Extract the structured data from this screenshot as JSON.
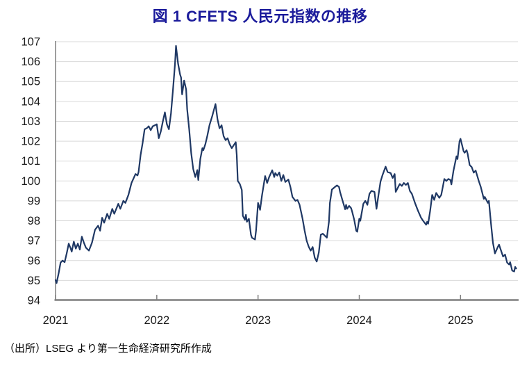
{
  "title": "図 1  CFETS 人民元指数の推移",
  "source_note": "（出所）LSEG より第一生命経済研究所作成",
  "colors": {
    "title_text": "#1b1b9b",
    "line": "#1f3864",
    "grid": "#d9d9d9",
    "axis": "#7f7f7f",
    "axis_text": "#1a1a1a"
  },
  "chart_data": {
    "type": "line",
    "title": "図 1  CFETS 人民元指数の推移",
    "xlabel": "",
    "ylabel": "",
    "grid": "horizontal",
    "legend": "none",
    "x_axis": {
      "range": [
        2021.0,
        2025.56
      ],
      "tick_positions": [
        2021,
        2022,
        2023,
        2024,
        2025
      ],
      "tick_labels": [
        "2021",
        "2022",
        "2023",
        "2024",
        "2025"
      ]
    },
    "y_axis": {
      "range": [
        94,
        107
      ],
      "tick_step": 1,
      "tick_labels": [
        "94",
        "95",
        "96",
        "97",
        "98",
        "99",
        "100",
        "101",
        "102",
        "103",
        "104",
        "105",
        "106",
        "107"
      ]
    },
    "series": [
      {
        "name": "CFETS人民元指数",
        "color": "#1f3864",
        "points": [
          [
            2021.0,
            95.02
          ],
          [
            2021.01,
            94.87
          ],
          [
            2021.03,
            95.35
          ],
          [
            2021.05,
            95.9
          ],
          [
            2021.07,
            96.0
          ],
          [
            2021.09,
            95.92
          ],
          [
            2021.11,
            96.35
          ],
          [
            2021.13,
            96.85
          ],
          [
            2021.15,
            96.6
          ],
          [
            2021.16,
            96.45
          ],
          [
            2021.18,
            96.95
          ],
          [
            2021.2,
            96.6
          ],
          [
            2021.22,
            96.85
          ],
          [
            2021.24,
            96.55
          ],
          [
            2021.26,
            97.2
          ],
          [
            2021.28,
            96.9
          ],
          [
            2021.3,
            96.65
          ],
          [
            2021.33,
            96.5
          ],
          [
            2021.36,
            96.9
          ],
          [
            2021.39,
            97.55
          ],
          [
            2021.42,
            97.75
          ],
          [
            2021.44,
            97.5
          ],
          [
            2021.46,
            98.15
          ],
          [
            2021.48,
            97.9
          ],
          [
            2021.51,
            98.35
          ],
          [
            2021.53,
            98.1
          ],
          [
            2021.56,
            98.6
          ],
          [
            2021.58,
            98.35
          ],
          [
            2021.62,
            98.85
          ],
          [
            2021.64,
            98.6
          ],
          [
            2021.67,
            99.0
          ],
          [
            2021.69,
            98.9
          ],
          [
            2021.72,
            99.3
          ],
          [
            2021.75,
            99.9
          ],
          [
            2021.79,
            100.35
          ],
          [
            2021.81,
            100.28
          ],
          [
            2021.82,
            100.45
          ],
          [
            2021.84,
            101.3
          ],
          [
            2021.86,
            101.9
          ],
          [
            2021.88,
            102.6
          ],
          [
            2021.9,
            102.65
          ],
          [
            2021.92,
            102.75
          ],
          [
            2021.94,
            102.55
          ],
          [
            2021.96,
            102.75
          ],
          [
            2021.98,
            102.8
          ],
          [
            2022.0,
            102.85
          ],
          [
            2022.02,
            102.15
          ],
          [
            2022.04,
            102.5
          ],
          [
            2022.06,
            103.0
          ],
          [
            2022.08,
            103.45
          ],
          [
            2022.1,
            102.85
          ],
          [
            2022.12,
            102.6
          ],
          [
            2022.14,
            103.4
          ],
          [
            2022.16,
            104.6
          ],
          [
            2022.18,
            105.9
          ],
          [
            2022.19,
            106.79
          ],
          [
            2022.21,
            105.9
          ],
          [
            2022.23,
            105.35
          ],
          [
            2022.24,
            105.2
          ],
          [
            2022.25,
            104.35
          ],
          [
            2022.27,
            105.05
          ],
          [
            2022.29,
            104.6
          ],
          [
            2022.3,
            103.6
          ],
          [
            2022.32,
            102.6
          ],
          [
            2022.34,
            101.4
          ],
          [
            2022.36,
            100.6
          ],
          [
            2022.38,
            100.2
          ],
          [
            2022.4,
            100.55
          ],
          [
            2022.41,
            100.05
          ],
          [
            2022.43,
            101.1
          ],
          [
            2022.45,
            101.65
          ],
          [
            2022.46,
            101.55
          ],
          [
            2022.48,
            101.85
          ],
          [
            2022.5,
            102.3
          ],
          [
            2022.52,
            102.8
          ],
          [
            2022.55,
            103.3
          ],
          [
            2022.58,
            103.87
          ],
          [
            2022.6,
            103.1
          ],
          [
            2022.62,
            102.65
          ],
          [
            2022.64,
            102.8
          ],
          [
            2022.66,
            102.25
          ],
          [
            2022.68,
            102.05
          ],
          [
            2022.7,
            102.15
          ],
          [
            2022.72,
            101.85
          ],
          [
            2022.74,
            101.65
          ],
          [
            2022.76,
            101.8
          ],
          [
            2022.78,
            101.95
          ],
          [
            2022.79,
            101.3
          ],
          [
            2022.8,
            100.0
          ],
          [
            2022.82,
            99.85
          ],
          [
            2022.84,
            99.55
          ],
          [
            2022.85,
            98.25
          ],
          [
            2022.87,
            98.05
          ],
          [
            2022.88,
            98.3
          ],
          [
            2022.89,
            97.95
          ],
          [
            2022.91,
            98.1
          ],
          [
            2022.93,
            97.3
          ],
          [
            2022.94,
            97.15
          ],
          [
            2022.97,
            97.06
          ],
          [
            2022.98,
            97.5
          ],
          [
            2023.0,
            98.9
          ],
          [
            2023.02,
            98.55
          ],
          [
            2023.04,
            99.3
          ],
          [
            2023.07,
            100.25
          ],
          [
            2023.09,
            99.9
          ],
          [
            2023.11,
            100.2
          ],
          [
            2023.14,
            100.54
          ],
          [
            2023.16,
            100.2
          ],
          [
            2023.17,
            100.4
          ],
          [
            2023.19,
            100.27
          ],
          [
            2023.21,
            100.43
          ],
          [
            2023.23,
            100.0
          ],
          [
            2023.25,
            100.3
          ],
          [
            2023.27,
            99.95
          ],
          [
            2023.3,
            100.07
          ],
          [
            2023.32,
            99.7
          ],
          [
            2023.34,
            99.2
          ],
          [
            2023.37,
            99.0
          ],
          [
            2023.39,
            99.05
          ],
          [
            2023.41,
            98.8
          ],
          [
            2023.44,
            98.1
          ],
          [
            2023.46,
            97.5
          ],
          [
            2023.48,
            97.0
          ],
          [
            2023.5,
            96.7
          ],
          [
            2023.52,
            96.5
          ],
          [
            2023.54,
            96.68
          ],
          [
            2023.56,
            96.15
          ],
          [
            2023.58,
            95.95
          ],
          [
            2023.6,
            96.4
          ],
          [
            2023.62,
            97.3
          ],
          [
            2023.64,
            97.35
          ],
          [
            2023.66,
            97.25
          ],
          [
            2023.68,
            97.15
          ],
          [
            2023.7,
            97.95
          ],
          [
            2023.71,
            98.9
          ],
          [
            2023.73,
            99.57
          ],
          [
            2023.76,
            99.7
          ],
          [
            2023.78,
            99.78
          ],
          [
            2023.8,
            99.7
          ],
          [
            2023.81,
            99.45
          ],
          [
            2023.83,
            99.1
          ],
          [
            2023.86,
            98.58
          ],
          [
            2023.87,
            98.8
          ],
          [
            2023.88,
            98.6
          ],
          [
            2023.9,
            98.75
          ],
          [
            2023.92,
            98.63
          ],
          [
            2023.93,
            98.45
          ],
          [
            2023.95,
            98.05
          ],
          [
            2023.97,
            97.5
          ],
          [
            2023.98,
            97.45
          ],
          [
            2024.0,
            98.1
          ],
          [
            2024.01,
            98.0
          ],
          [
            2024.04,
            98.85
          ],
          [
            2024.06,
            99.0
          ],
          [
            2024.08,
            98.8
          ],
          [
            2024.1,
            99.35
          ],
          [
            2024.12,
            99.5
          ],
          [
            2024.15,
            99.45
          ],
          [
            2024.17,
            98.6
          ],
          [
            2024.19,
            99.3
          ],
          [
            2024.21,
            99.97
          ],
          [
            2024.23,
            100.3
          ],
          [
            2024.26,
            100.72
          ],
          [
            2024.28,
            100.45
          ],
          [
            2024.31,
            100.4
          ],
          [
            2024.33,
            100.15
          ],
          [
            2024.35,
            100.35
          ],
          [
            2024.36,
            99.45
          ],
          [
            2024.4,
            99.85
          ],
          [
            2024.42,
            99.75
          ],
          [
            2024.44,
            99.9
          ],
          [
            2024.46,
            99.8
          ],
          [
            2024.48,
            99.9
          ],
          [
            2024.5,
            99.5
          ],
          [
            2024.52,
            99.35
          ],
          [
            2024.55,
            98.9
          ],
          [
            2024.58,
            98.5
          ],
          [
            2024.61,
            98.15
          ],
          [
            2024.63,
            98.0
          ],
          [
            2024.66,
            97.8
          ],
          [
            2024.67,
            97.95
          ],
          [
            2024.68,
            97.85
          ],
          [
            2024.7,
            98.5
          ],
          [
            2024.72,
            99.3
          ],
          [
            2024.74,
            99.05
          ],
          [
            2024.76,
            99.4
          ],
          [
            2024.79,
            99.15
          ],
          [
            2024.81,
            99.3
          ],
          [
            2024.84,
            100.1
          ],
          [
            2024.86,
            100.0
          ],
          [
            2024.88,
            100.1
          ],
          [
            2024.9,
            100.05
          ],
          [
            2024.91,
            99.83
          ],
          [
            2024.93,
            100.5
          ],
          [
            2024.96,
            101.24
          ],
          [
            2024.97,
            101.1
          ],
          [
            2024.99,
            102.0
          ],
          [
            2025.0,
            102.12
          ],
          [
            2025.03,
            101.5
          ],
          [
            2025.04,
            101.42
          ],
          [
            2025.06,
            101.55
          ],
          [
            2025.07,
            101.38
          ],
          [
            2025.09,
            100.8
          ],
          [
            2025.11,
            100.7
          ],
          [
            2025.13,
            100.42
          ],
          [
            2025.15,
            100.52
          ],
          [
            2025.18,
            100.0
          ],
          [
            2025.2,
            99.7
          ],
          [
            2025.23,
            99.1
          ],
          [
            2025.24,
            99.2
          ],
          [
            2025.27,
            98.9
          ],
          [
            2025.28,
            99.0
          ],
          [
            2025.3,
            97.9
          ],
          [
            2025.32,
            96.9
          ],
          [
            2025.34,
            96.36
          ],
          [
            2025.37,
            96.7
          ],
          [
            2025.38,
            96.8
          ],
          [
            2025.4,
            96.5
          ],
          [
            2025.42,
            96.2
          ],
          [
            2025.44,
            96.3
          ],
          [
            2025.46,
            95.9
          ],
          [
            2025.48,
            95.8
          ],
          [
            2025.49,
            95.92
          ],
          [
            2025.51,
            95.5
          ],
          [
            2025.53,
            95.45
          ],
          [
            2025.54,
            95.68
          ],
          [
            2025.55,
            95.6
          ]
        ]
      }
    ]
  }
}
